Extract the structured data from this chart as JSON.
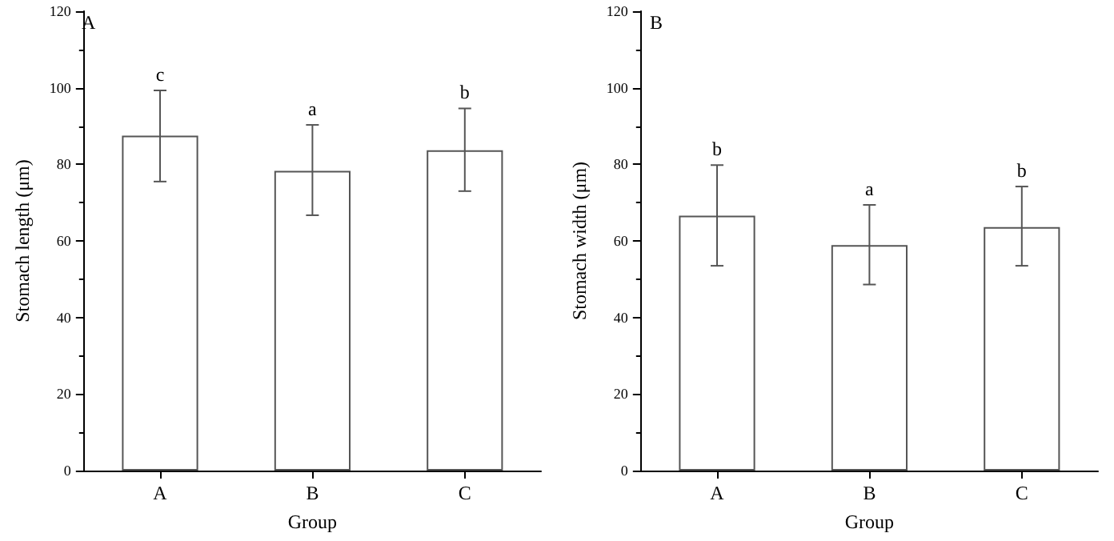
{
  "chart_data": [
    {
      "type": "bar",
      "title": "A",
      "xlabel": "Group",
      "ylabel": "Stomach length (μm)",
      "categories": [
        "A",
        "B",
        "C"
      ],
      "values": [
        87.5,
        78.3,
        83.7
      ],
      "color": "#ffffff",
      "errors": [
        [
          75.5,
          99.3
        ],
        [
          66.7,
          90.3
        ],
        [
          73.0,
          94.6
        ]
      ],
      "ylim": [
        0,
        120
      ],
      "yticks": [
        0,
        20,
        40,
        60,
        80,
        100,
        120
      ],
      "grid": false,
      "annotations": [
        {
          "text": "c",
          "x": "A",
          "y": 99.3
        },
        {
          "text": "a",
          "x": "B",
          "y": 90.3
        },
        {
          "text": "b",
          "x": "C",
          "y": 94.6
        }
      ]
    },
    {
      "type": "bar",
      "title": "B",
      "xlabel": "Group",
      "ylabel": "Stomach width (μm)",
      "categories": [
        "A",
        "B",
        "C"
      ],
      "values": [
        66.6,
        58.9,
        63.6
      ],
      "color": "#ffffff",
      "errors": [
        [
          53.5,
          79.8
        ],
        [
          48.6,
          69.4
        ],
        [
          53.5,
          74.2
        ]
      ],
      "ylim": [
        0,
        120
      ],
      "yticks": [
        0,
        20,
        40,
        60,
        80,
        100,
        120
      ],
      "grid": false,
      "annotations": [
        {
          "text": "b",
          "x": "A",
          "y": 79.8
        },
        {
          "text": "a",
          "x": "B",
          "y": 69.4
        },
        {
          "text": "b",
          "x": "C",
          "y": 74.2
        }
      ]
    }
  ]
}
